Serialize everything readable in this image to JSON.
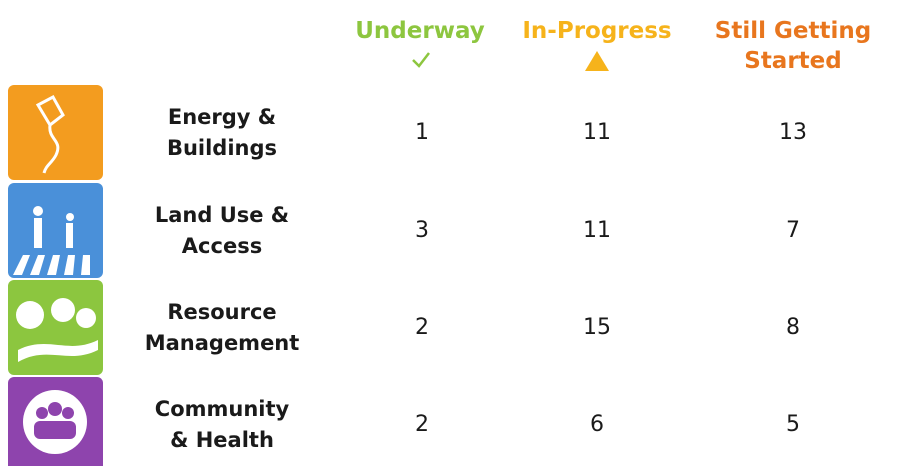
{
  "table": {
    "header": [
      "Underway",
      "In-Progress",
      "Still Getting Started"
    ],
    "rows": [
      {
        "label": "Energy & Buildings",
        "values": [
          1,
          11,
          13
        ]
      },
      {
        "label": "Land Use & Access",
        "values": [
          3,
          11,
          7
        ]
      },
      {
        "label": "Resource Management",
        "values": [
          2,
          15,
          8
        ]
      },
      {
        "label": "Community & Health",
        "values": [
          2,
          6,
          5
        ]
      }
    ]
  }
}
